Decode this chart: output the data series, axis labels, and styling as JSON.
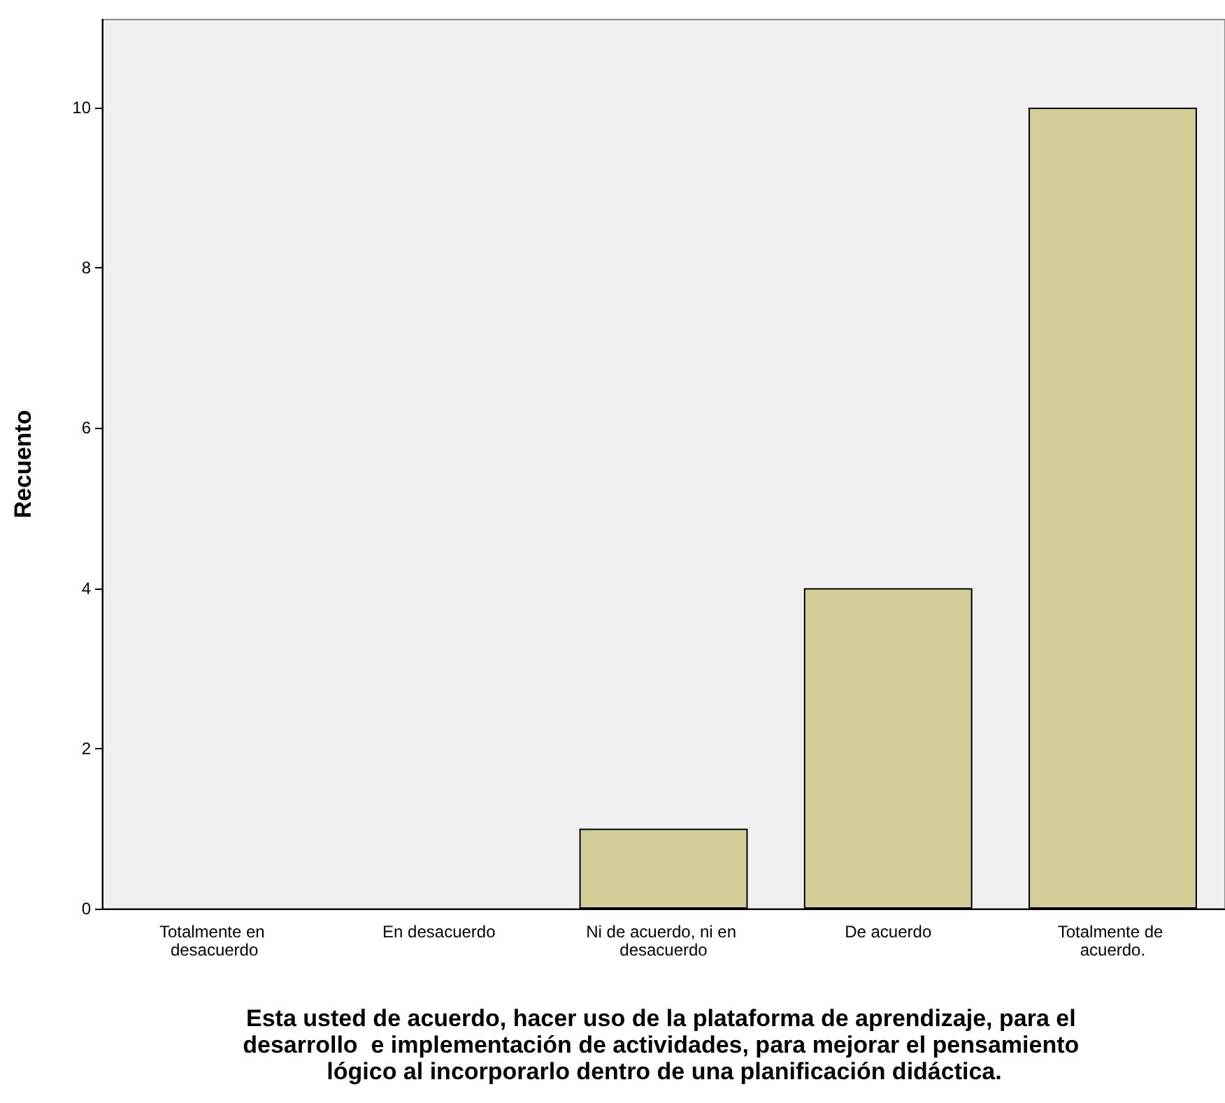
{
  "chart_data": {
    "type": "bar",
    "xlabel": "Esta usted de acuerdo, hacer uso de la plataforma de aprendizaje, para el desarrollo  e implementación de actividades, para mejorar el pensamiento lógico al incorporarlo dentro de una planificación didáctica.",
    "ylabel": "Recuento",
    "categories": [
      "Totalmente en desacuerdo",
      "En desacuerdo",
      "Ni de acuerdo, ni en desacuerdo",
      "De acuerdo",
      "Totalmente de acuerdo."
    ],
    "values": [
      0,
      0,
      1,
      4,
      10
    ],
    "color": "#d3ce98",
    "ylim": [
      0,
      11.1
    ],
    "yticks": [
      0,
      2,
      4,
      6,
      8,
      10
    ],
    "grid": false
  }
}
